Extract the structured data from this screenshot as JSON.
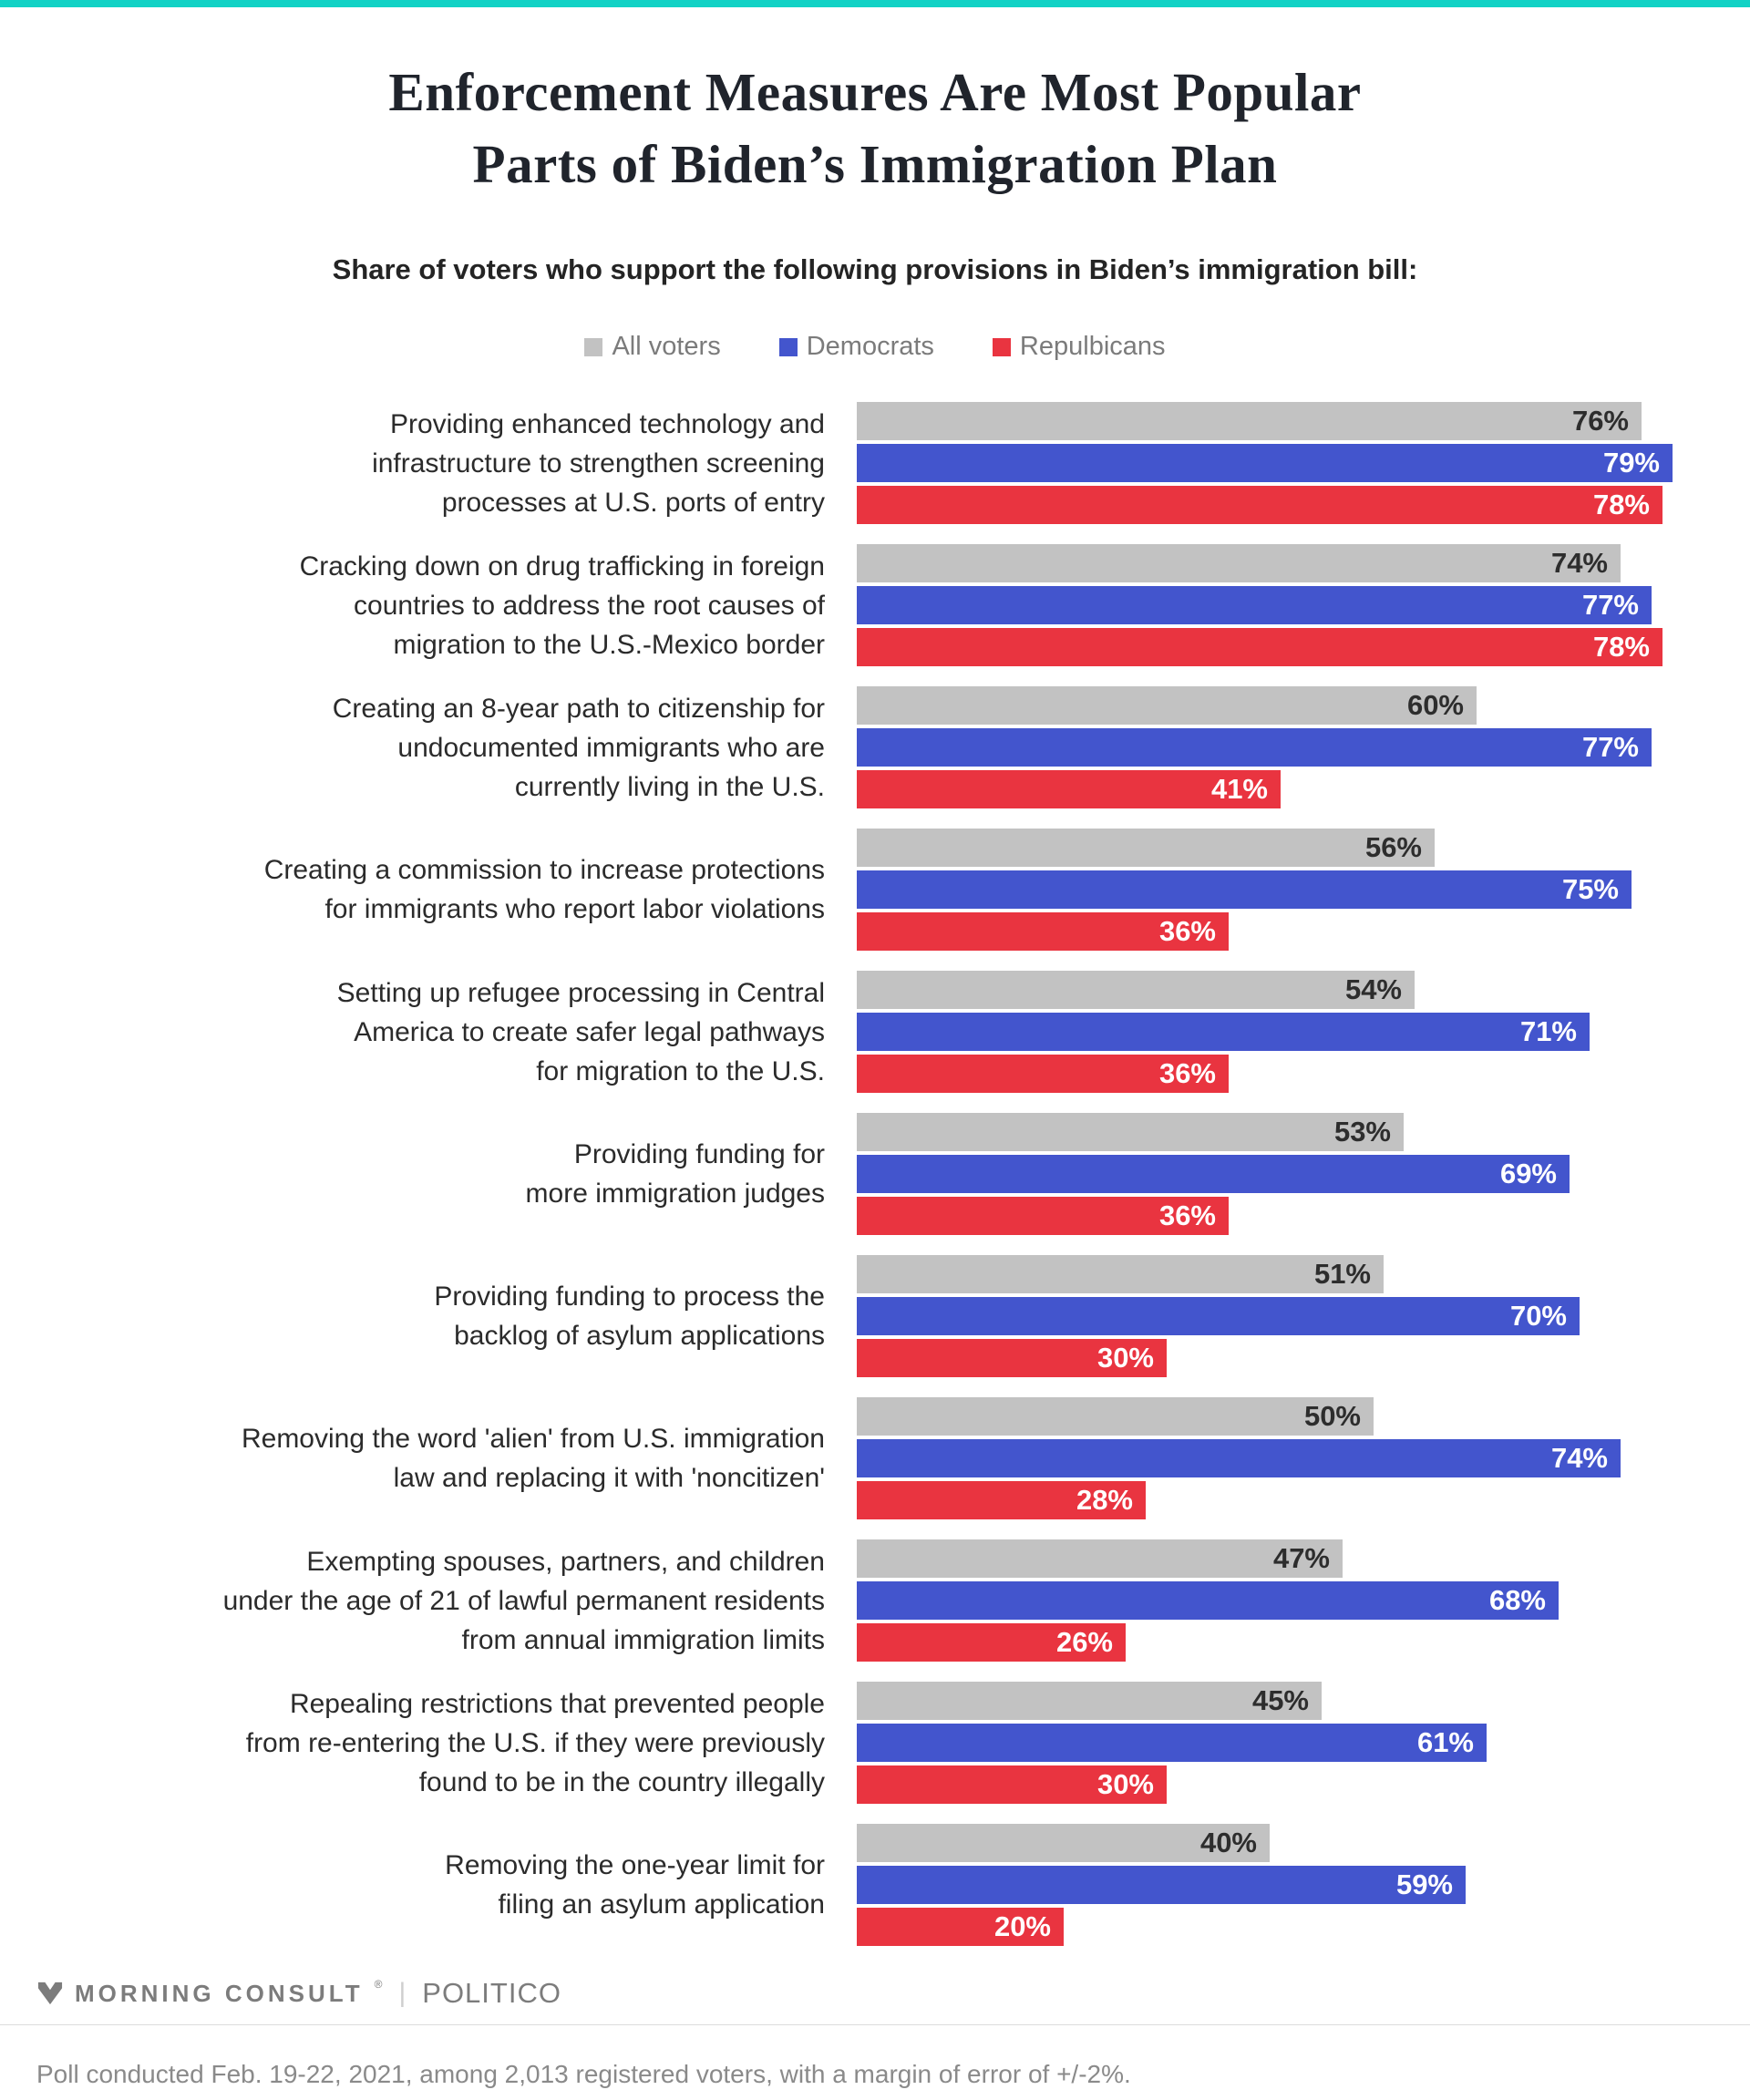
{
  "page": {
    "accent_bar_color": "#12d2c5",
    "background_color": "#ffffff"
  },
  "header": {
    "title_line1": "Enforcement Measures Are Most Popular",
    "title_line2": "Parts of Biden’s Immigration Plan",
    "subtitle": "Share of voters who support the following provisions in Biden’s immigration bill:"
  },
  "legend": {
    "items": [
      {
        "label": "All voters",
        "color": "#c2c2c2"
      },
      {
        "label": "Democrats",
        "color": "#4355cd"
      },
      {
        "label": "Repulbicans",
        "color": "#e93440"
      }
    ]
  },
  "chart_data": {
    "type": "bar",
    "orientation": "horizontal",
    "value_unit": "%",
    "grid": false,
    "legend_position": "top-center",
    "axis_implied_max_percent": 85,
    "series_names": [
      "All voters",
      "Democrats",
      "Repulbicans"
    ],
    "categories": [
      "Providing enhanced technology and infrastructure to strengthen screening processes at U.S. ports of entry",
      "Cracking down on drug trafficking in foreign countries to address the root causes of migration to the U.S.-Mexico border",
      "Creating an 8-year path to citizenship for undocumented immigrants who are currently living in the U.S.",
      "Creating a commission to increase protections for immigrants who report labor violations",
      "Setting up refugee processing in Central America to create safer legal pathways for migration to the U.S.",
      "Providing funding for more immigration judges",
      "Providing funding to process the backlog of asylum applications",
      "Removing the word 'alien' from U.S. immigration law and replacing it with 'noncitizen'",
      "Exempting spouses, partners, and children under the age of 21 of lawful permanent residents from annual immigration limits",
      "Repealing restrictions that prevented people from re-entering the U.S. if they were previously found to be in the country illegally",
      "Removing the one-year limit for filing an asylum application"
    ],
    "category_lines": [
      [
        "Providing enhanced technology and",
        "infrastructure to strengthen screening",
        "processes at U.S. ports of entry"
      ],
      [
        "Cracking down on drug trafficking in foreign",
        "countries to address the root causes of",
        "migration to the U.S.-Mexico border"
      ],
      [
        "Creating an 8-year path to citizenship for",
        "undocumented immigrants who are",
        "currently living in the U.S."
      ],
      [
        "Creating a commission to increase protections",
        "for immigrants who report labor violations"
      ],
      [
        "Setting up refugee processing in Central",
        "America to create safer legal pathways",
        "for migration to the U.S."
      ],
      [
        "Providing funding for",
        "more immigration judges"
      ],
      [
        "Providing funding to process the",
        "backlog of asylum applications"
      ],
      [
        "Removing the word 'alien' from U.S. immigration",
        "law and replacing it with 'noncitizen'"
      ],
      [
        "Exempting spouses, partners, and children",
        "under the age of 21 of lawful permanent residents",
        "from annual immigration limits"
      ],
      [
        "Repealing restrictions that prevented people",
        "from re-entering the U.S. if they were previously",
        "found to be in the country illegally"
      ],
      [
        "Removing the one-year limit for",
        "filing an asylum application"
      ]
    ],
    "series": [
      {
        "name": "All voters",
        "css": "all-voters",
        "color": "#c2c2c2",
        "values": [
          76,
          74,
          60,
          56,
          54,
          53,
          51,
          50,
          47,
          45,
          40
        ]
      },
      {
        "name": "Democrats",
        "css": "democrats",
        "color": "#4355cd",
        "values": [
          79,
          77,
          77,
          75,
          71,
          69,
          70,
          74,
          68,
          61,
          59
        ]
      },
      {
        "name": "Repulbicans",
        "css": "republicans",
        "color": "#e93440",
        "values": [
          78,
          78,
          41,
          36,
          36,
          36,
          30,
          28,
          26,
          30,
          20
        ]
      }
    ]
  },
  "footer": {
    "brand_left": "MORNING CONSULT",
    "brand_left_mark": "®",
    "brand_divider": "|",
    "brand_right": "POLITICO",
    "footnote": "Poll conducted Feb. 19-22, 2021, among 2,013 registered voters, with a margin of error of +/-2%."
  }
}
